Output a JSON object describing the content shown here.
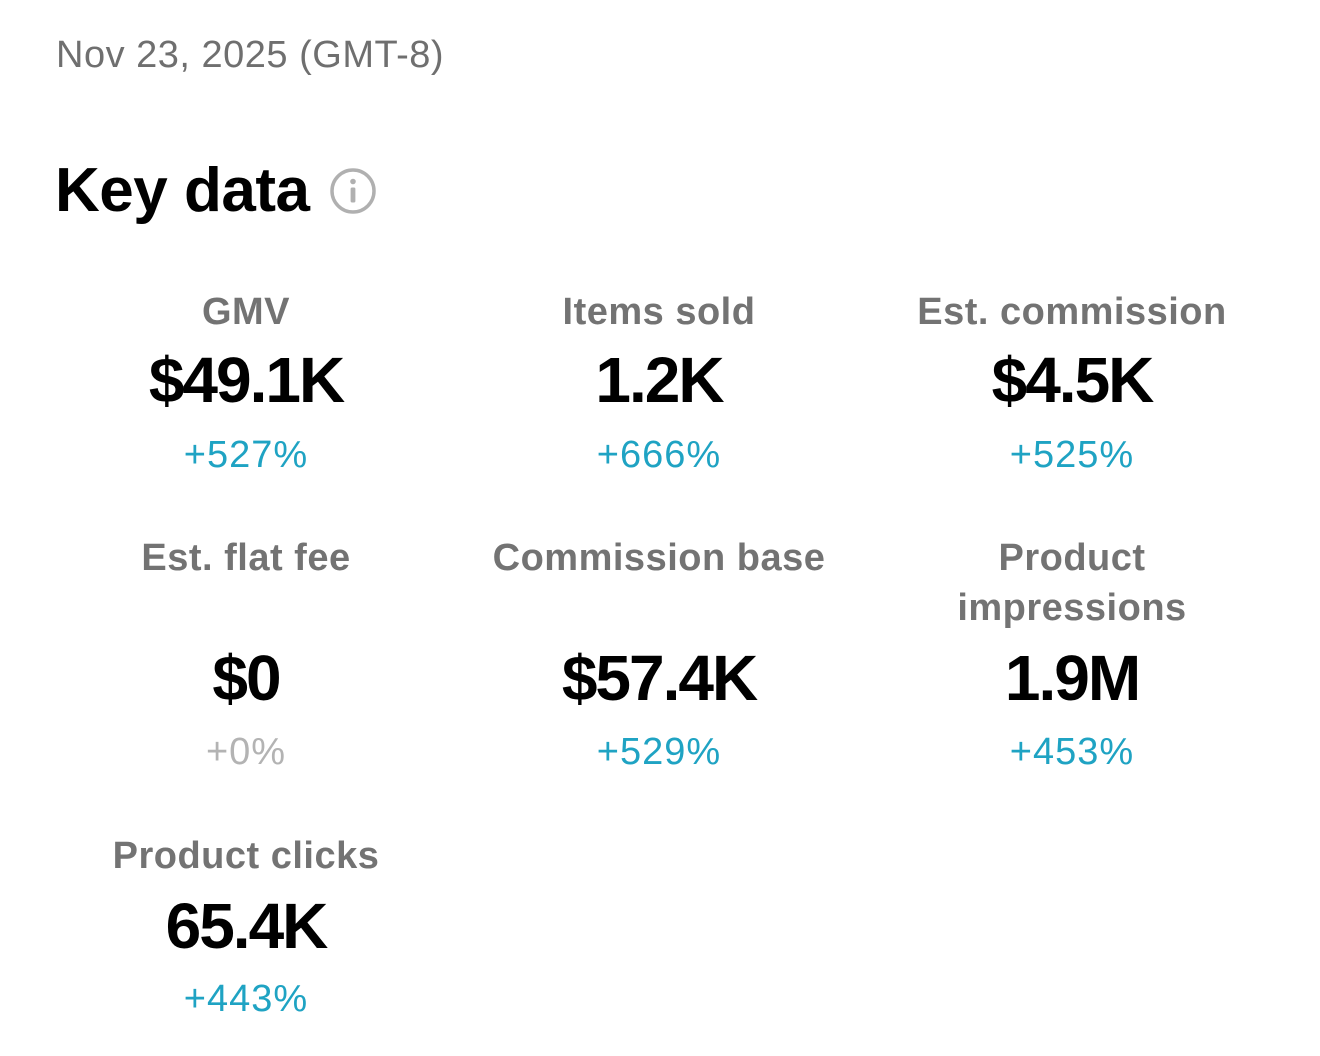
{
  "date_label": "Nov 23, 2025 (GMT-8)",
  "section": {
    "title": "Key data",
    "info_icon": "info-circle-icon"
  },
  "colors": {
    "positive_change": "#1fa3c3",
    "neutral_change": "#b3b3b3",
    "label": "#737373"
  },
  "metrics": [
    {
      "label": "GMV",
      "value": "$49.1K",
      "change": "+527%"
    },
    {
      "label": "Items sold",
      "value": "1.2K",
      "change": "+666%"
    },
    {
      "label": "Est. commission",
      "value": "$4.5K",
      "change": "+525%"
    },
    {
      "label": "Est. flat fee",
      "value": "$0",
      "change": "+0%"
    },
    {
      "label": "Commission base",
      "value": "$57.4K",
      "change": "+529%"
    },
    {
      "label": "Product impressions",
      "value": "1.9M",
      "change": "+453%"
    },
    {
      "label": "Product clicks",
      "value": "65.4K",
      "change": "+443%"
    }
  ]
}
